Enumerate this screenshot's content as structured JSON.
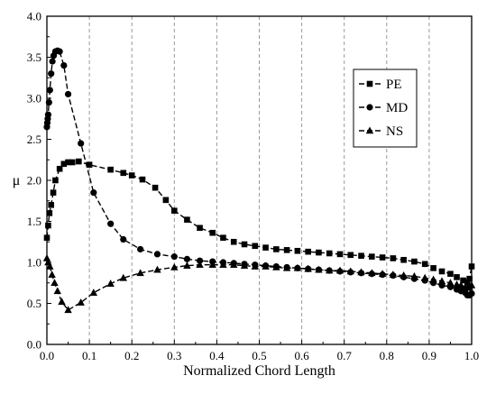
{
  "chart_data": {
    "type": "line",
    "xlabel": "Normalized Chord Length",
    "ylabel": "μ",
    "xlim": [
      0,
      1.0
    ],
    "ylim": [
      0,
      4.0
    ],
    "xticks": [
      "0.0",
      "0.1",
      "0.2",
      "0.3",
      "0.4",
      "0.5",
      "0.6",
      "0.7",
      "0.8",
      "0.9",
      "1.0"
    ],
    "yticks": [
      "0.0",
      "0.5",
      "1.0",
      "1.5",
      "2.0",
      "2.5",
      "3.0",
      "3.5",
      "4.0"
    ],
    "grid": "vertical dashed",
    "legend_position": "top-right",
    "series": [
      {
        "name": "PE",
        "marker": "square",
        "x": [
          0.0,
          0.003,
          0.006,
          0.01,
          0.015,
          0.02,
          0.03,
          0.04,
          0.05,
          0.06,
          0.075,
          0.1,
          0.15,
          0.18,
          0.2,
          0.225,
          0.255,
          0.28,
          0.3,
          0.33,
          0.36,
          0.39,
          0.415,
          0.44,
          0.465,
          0.49,
          0.515,
          0.54,
          0.565,
          0.59,
          0.615,
          0.64,
          0.665,
          0.69,
          0.715,
          0.74,
          0.765,
          0.79,
          0.815,
          0.84,
          0.865,
          0.89,
          0.91,
          0.93,
          0.95,
          0.965,
          0.98,
          0.99,
          0.995,
          1.0
        ],
        "y": [
          1.3,
          1.45,
          1.6,
          1.7,
          1.85,
          2.0,
          2.14,
          2.2,
          2.22,
          2.22,
          2.23,
          2.19,
          2.13,
          2.09,
          2.06,
          2.01,
          1.91,
          1.76,
          1.63,
          1.52,
          1.42,
          1.36,
          1.3,
          1.25,
          1.22,
          1.2,
          1.18,
          1.16,
          1.15,
          1.14,
          1.13,
          1.12,
          1.11,
          1.1,
          1.09,
          1.08,
          1.07,
          1.06,
          1.05,
          1.03,
          1.01,
          0.98,
          0.93,
          0.89,
          0.86,
          0.82,
          0.78,
          0.76,
          0.8,
          0.95
        ]
      },
      {
        "name": "MD",
        "marker": "circle",
        "x": [
          0.0,
          0.001,
          0.002,
          0.003,
          0.005,
          0.007,
          0.01,
          0.013,
          0.016,
          0.02,
          0.025,
          0.03,
          0.04,
          0.05,
          0.08,
          0.11,
          0.15,
          0.18,
          0.22,
          0.26,
          0.3,
          0.33,
          0.36,
          0.39,
          0.415,
          0.44,
          0.465,
          0.49,
          0.515,
          0.54,
          0.565,
          0.59,
          0.615,
          0.64,
          0.665,
          0.69,
          0.715,
          0.74,
          0.765,
          0.79,
          0.815,
          0.84,
          0.865,
          0.89,
          0.91,
          0.93,
          0.95,
          0.965,
          0.975,
          0.985,
          0.99,
          0.995,
          1.0
        ],
        "y": [
          2.65,
          2.7,
          2.75,
          2.8,
          2.95,
          3.1,
          3.3,
          3.45,
          3.52,
          3.57,
          3.58,
          3.57,
          3.4,
          3.05,
          2.45,
          1.85,
          1.47,
          1.28,
          1.16,
          1.1,
          1.07,
          1.04,
          1.02,
          1.01,
          1.0,
          0.99,
          0.98,
          0.97,
          0.96,
          0.95,
          0.94,
          0.93,
          0.92,
          0.91,
          0.9,
          0.89,
          0.88,
          0.87,
          0.86,
          0.85,
          0.84,
          0.82,
          0.8,
          0.78,
          0.75,
          0.72,
          0.7,
          0.67,
          0.65,
          0.63,
          0.6,
          0.6,
          0.62
        ]
      },
      {
        "name": "NS",
        "marker": "triangle",
        "x": [
          0.0,
          0.003,
          0.007,
          0.012,
          0.018,
          0.025,
          0.035,
          0.05,
          0.08,
          0.11,
          0.15,
          0.18,
          0.22,
          0.26,
          0.3,
          0.33,
          0.36,
          0.39,
          0.415,
          0.44,
          0.465,
          0.49,
          0.515,
          0.54,
          0.565,
          0.59,
          0.615,
          0.64,
          0.665,
          0.69,
          0.715,
          0.74,
          0.765,
          0.79,
          0.815,
          0.84,
          0.865,
          0.89,
          0.91,
          0.93,
          0.95,
          0.965,
          0.975,
          0.985,
          0.99,
          0.995,
          1.0
        ],
        "y": [
          1.05,
          1.0,
          0.95,
          0.85,
          0.75,
          0.65,
          0.52,
          0.42,
          0.51,
          0.63,
          0.74,
          0.81,
          0.87,
          0.91,
          0.94,
          0.96,
          0.97,
          0.97,
          0.97,
          0.97,
          0.96,
          0.95,
          0.95,
          0.94,
          0.93,
          0.93,
          0.92,
          0.91,
          0.9,
          0.9,
          0.89,
          0.88,
          0.87,
          0.86,
          0.85,
          0.84,
          0.83,
          0.81,
          0.79,
          0.77,
          0.75,
          0.73,
          0.72,
          0.7,
          0.69,
          0.7,
          0.72
        ]
      }
    ]
  }
}
